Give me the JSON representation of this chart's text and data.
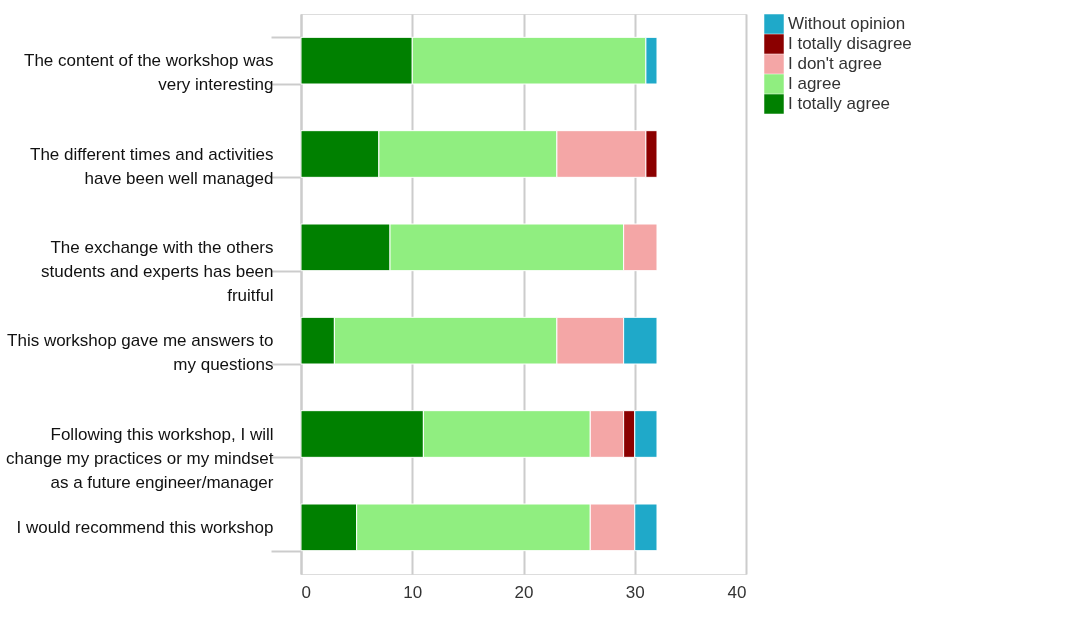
{
  "chart_data": {
    "type": "bar",
    "orientation": "horizontal",
    "stacked": true,
    "categories": [
      "The content of the workshop was very interesting",
      "The different times and activities have been well managed",
      "The exchange with the others students and experts has been fruitful",
      "This workshop gave me answers to my questions",
      "Following this workshop, I will change my practices or my mindset as a future engineer/manager",
      "I would recommend this workshop"
    ],
    "series": [
      {
        "name": "I totally agree",
        "color": "#008000",
        "values": [
          10,
          7,
          8,
          3,
          11,
          5
        ]
      },
      {
        "name": "I agree",
        "color": "#90ee80",
        "values": [
          21,
          16,
          21,
          20,
          15,
          21
        ]
      },
      {
        "name": "I don't agree",
        "color": "#f4a6a6",
        "values": [
          null,
          8,
          3,
          6,
          3,
          4
        ]
      },
      {
        "name": "I totally disagree",
        "color": "#8b0000",
        "values": [
          null,
          1,
          null,
          null,
          1,
          null
        ]
      },
      {
        "name": "Without opinion",
        "color": "#1fa9c9",
        "values": [
          1,
          null,
          null,
          3,
          2,
          2
        ]
      }
    ],
    "xlim": [
      0,
      40
    ],
    "xticks": [
      0,
      10,
      20,
      30,
      40
    ],
    "grid": "x",
    "legend": "right"
  }
}
